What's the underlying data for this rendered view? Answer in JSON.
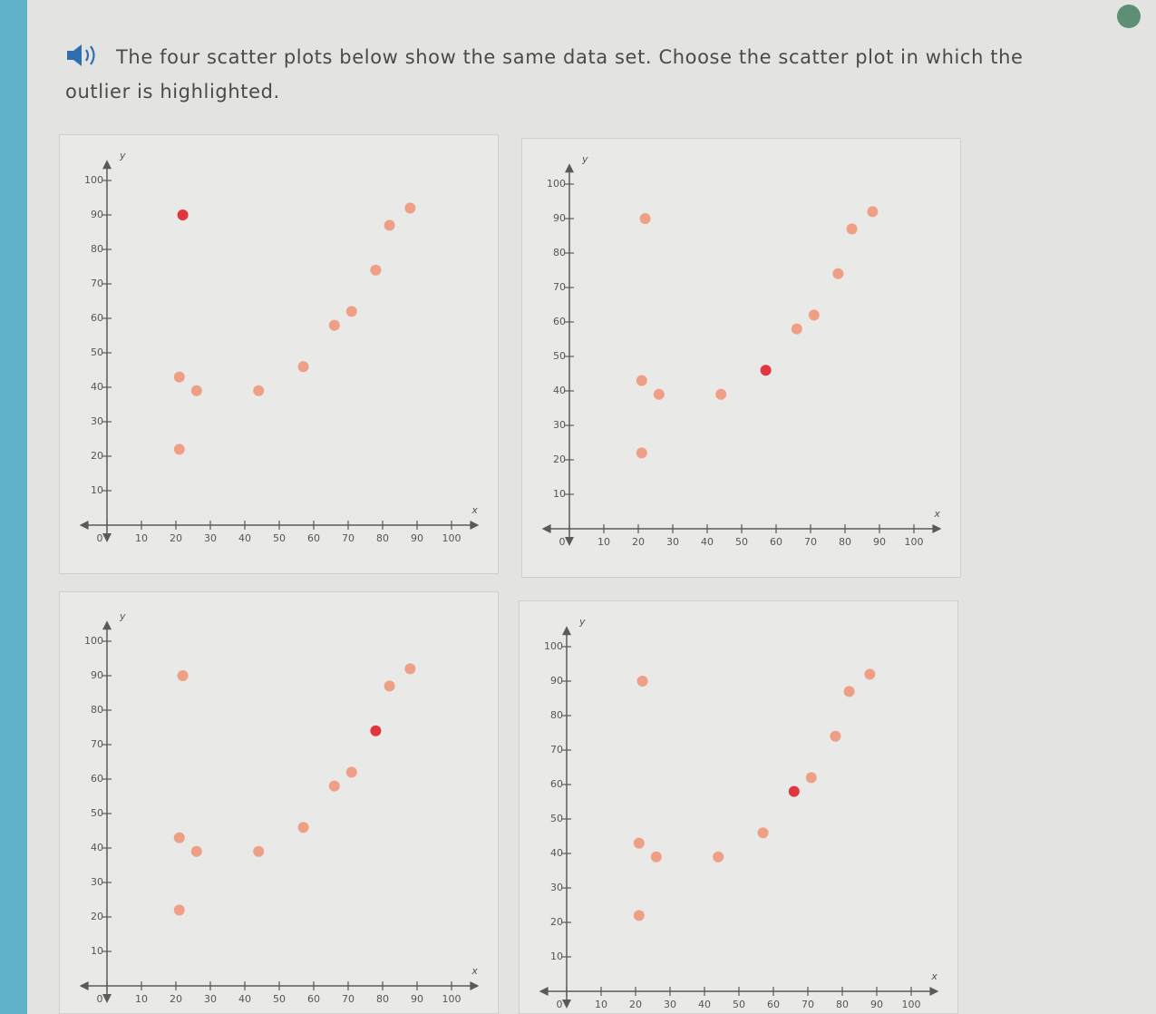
{
  "question": "The four scatter plots below show the same data set. Choose the scatter plot in which the outlier is highlighted.",
  "chart_data": [
    {
      "type": "scatter",
      "x_label": "x",
      "y_label": "y",
      "xlim": [
        -8,
        108
      ],
      "ylim": [
        -5,
        106
      ],
      "xticks": [
        0,
        10,
        20,
        30,
        40,
        50,
        60,
        70,
        80,
        90,
        100
      ],
      "yticks": [
        10,
        20,
        30,
        40,
        50,
        60,
        70,
        80,
        90,
        100
      ],
      "series": [
        {
          "color": "#ee9f86",
          "x": [
            21,
            21,
            26,
            44,
            57,
            66,
            71,
            78,
            82,
            88
          ],
          "values": [
            22,
            43,
            39,
            39,
            46,
            58,
            62,
            74,
            87,
            92
          ]
        },
        {
          "color": "#e0363f",
          "x": [
            22
          ],
          "values": [
            90
          ]
        }
      ]
    },
    {
      "type": "scatter",
      "x_label": "x",
      "y_label": "y",
      "xlim": [
        -8,
        108
      ],
      "ylim": [
        -5,
        106
      ],
      "xticks": [
        0,
        10,
        20,
        30,
        40,
        50,
        60,
        70,
        80,
        90,
        100
      ],
      "yticks": [
        10,
        20,
        30,
        40,
        50,
        60,
        70,
        80,
        90,
        100
      ],
      "series": [
        {
          "color": "#ee9f86",
          "x": [
            21,
            21,
            26,
            44,
            66,
            71,
            78,
            82,
            88,
            22
          ],
          "values": [
            22,
            43,
            39,
            39,
            58,
            62,
            74,
            87,
            92,
            90
          ]
        },
        {
          "color": "#e0363f",
          "x": [
            57
          ],
          "values": [
            46
          ]
        }
      ]
    },
    {
      "type": "scatter",
      "x_label": "x",
      "y_label": "y",
      "xlim": [
        -8,
        108
      ],
      "ylim": [
        -5,
        106
      ],
      "xticks": [
        0,
        10,
        20,
        30,
        40,
        50,
        60,
        70,
        80,
        90,
        100
      ],
      "yticks": [
        10,
        20,
        30,
        40,
        50,
        60,
        70,
        80,
        90,
        100
      ],
      "series": [
        {
          "color": "#ee9f86",
          "x": [
            21,
            21,
            26,
            44,
            57,
            66,
            71,
            82,
            88,
            22
          ],
          "values": [
            22,
            43,
            39,
            39,
            46,
            58,
            62,
            87,
            92,
            90
          ]
        },
        {
          "color": "#e0363f",
          "x": [
            78
          ],
          "values": [
            74
          ]
        }
      ]
    },
    {
      "type": "scatter",
      "x_label": "x",
      "y_label": "y",
      "xlim": [
        -8,
        108
      ],
      "ylim": [
        -5,
        106
      ],
      "xticks": [
        0,
        10,
        20,
        30,
        40,
        50,
        60,
        70,
        80,
        90,
        100
      ],
      "yticks": [
        10,
        20,
        30,
        40,
        50,
        60,
        70,
        80,
        90,
        100
      ],
      "series": [
        {
          "color": "#ee9f86",
          "x": [
            21,
            21,
            26,
            44,
            57,
            71,
            78,
            82,
            88,
            22
          ],
          "values": [
            22,
            43,
            39,
            39,
            46,
            62,
            74,
            87,
            92,
            90
          ]
        },
        {
          "color": "#e0363f",
          "x": [
            66
          ],
          "values": [
            58
          ]
        }
      ]
    }
  ]
}
